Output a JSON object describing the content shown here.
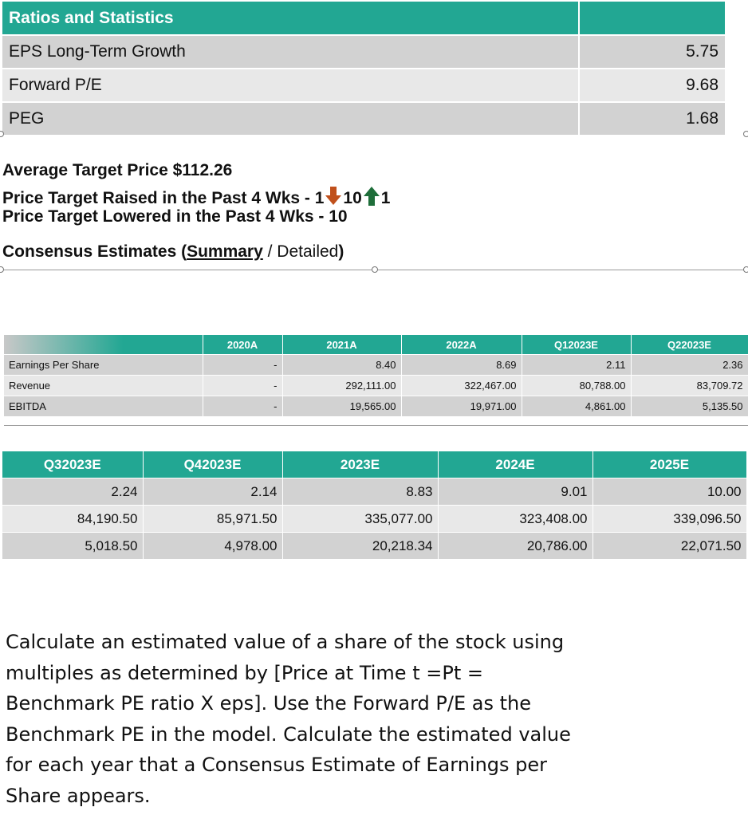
{
  "ratios": {
    "title": "Ratios and Statistics",
    "rows": [
      {
        "label": "EPS Long-Term Growth",
        "value": "5.75"
      },
      {
        "label": "Forward P/E",
        "value": "9.68"
      },
      {
        "label": "PEG",
        "value": "1.68"
      }
    ]
  },
  "targets": {
    "average": "Average Target Price $112.26",
    "raised_prefix": "Price Target Raised in the Past 4 Wks - 1",
    "raised_mid": "10",
    "raised_suffix": "1",
    "lowered": "Price Target Lowered in the Past 4 Wks - 10",
    "consensus_prefix": "Consensus Estimates (",
    "consensus_summary": "Summary",
    "consensus_sep": " / Detailed",
    "consensus_suffix": ")"
  },
  "table1": {
    "headers": [
      "",
      "2020A",
      "2021A",
      "2022A",
      "Q12023E",
      "Q22023E"
    ],
    "rows": [
      {
        "label": "Earnings Per Share",
        "values": [
          "-",
          "8.40",
          "8.69",
          "2.11",
          "2.36"
        ]
      },
      {
        "label": "Revenue",
        "values": [
          "-",
          "292,111.00",
          "322,467.00",
          "80,788.00",
          "83,709.72"
        ]
      },
      {
        "label": "EBITDA",
        "values": [
          "-",
          "19,565.00",
          "19,971.00",
          "4,861.00",
          "5,135.50"
        ]
      }
    ]
  },
  "table2": {
    "headers": [
      "Q32023E",
      "Q42023E",
      "2023E",
      "2024E",
      "2025E"
    ],
    "rows": [
      [
        "2.24",
        "2.14",
        "8.83",
        "9.01",
        "10.00"
      ],
      [
        "84,190.50",
        "85,971.50",
        "335,077.00",
        "323,408.00",
        "339,096.50"
      ],
      [
        "5,018.50",
        "4,978.00",
        "20,218.34",
        "20,786.00",
        "22,071.50"
      ]
    ]
  },
  "question": "Calculate an estimated value of a share of the stock using multiples as determined by [Price at Time t =Pt = Benchmark PE ratio X eps]. Use the Forward P/E as the Benchmark PE in the model. Calculate the estimated value for each year that a Consensus Estimate of Earnings per Share appears."
}
